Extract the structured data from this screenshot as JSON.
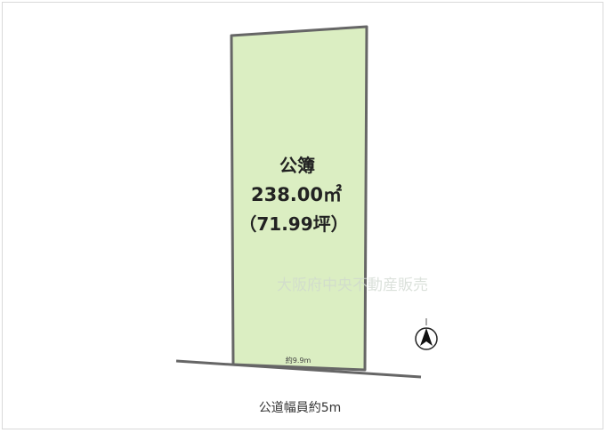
{
  "lot": {
    "area_label": "公簿",
    "area_sqm": "238.00㎡",
    "area_tsubo": "（71.99坪）",
    "frontage": "約9.9m",
    "fill_color": "#dbeec2",
    "edge_color": "#666666"
  },
  "road": {
    "label": "公道幅員約5m"
  },
  "watermark": "大阪府中央不動産販売",
  "compass": {
    "icon": "north-arrow-icon"
  }
}
